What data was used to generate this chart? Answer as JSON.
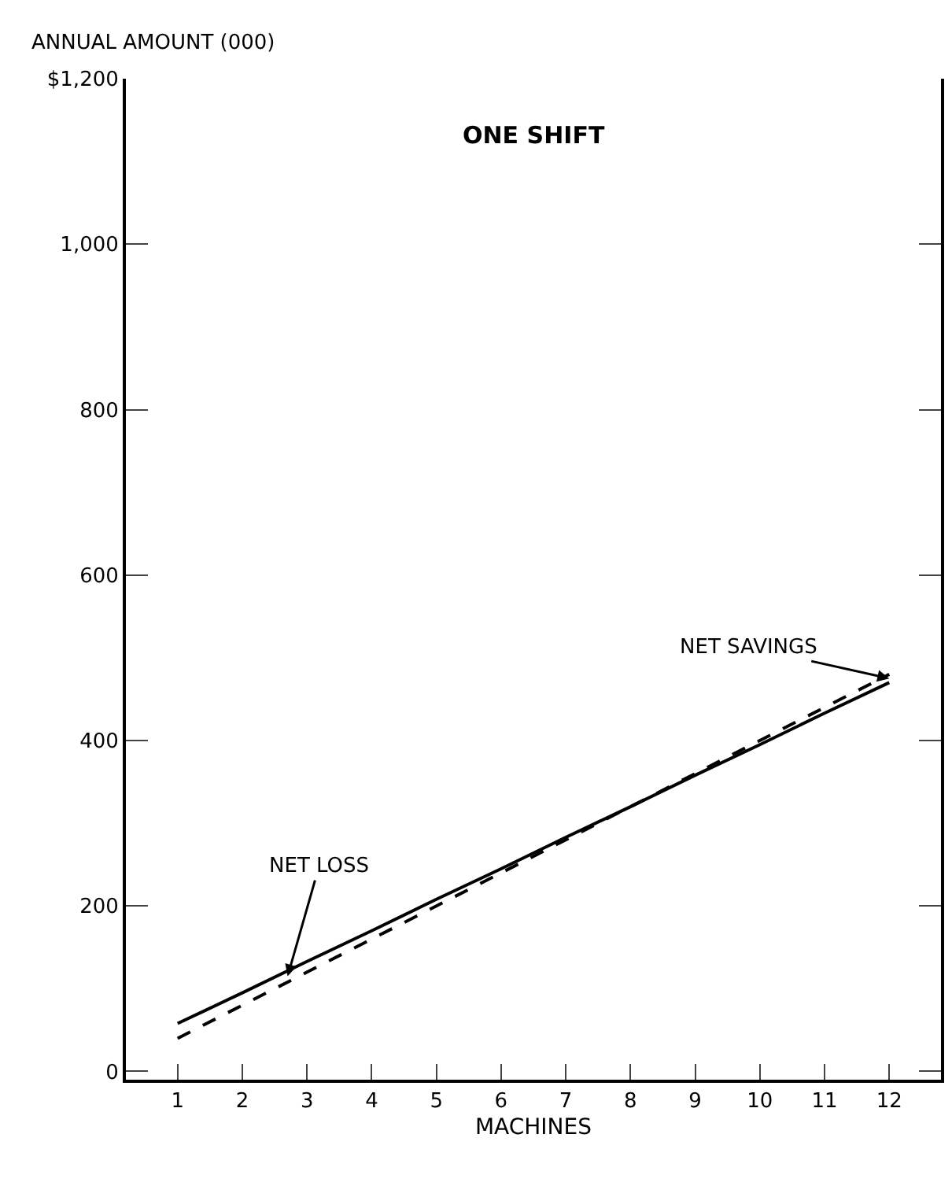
{
  "chart_data": {
    "type": "line",
    "title": "ONE SHIFT",
    "xlabel": "MACHINES",
    "ylabel": "ANNUAL AMOUNT (000)",
    "x": [
      1,
      2,
      3,
      4,
      5,
      6,
      7,
      8,
      9,
      10,
      11,
      12
    ],
    "series": [
      {
        "color": "#000000",
        "line_style": "solid",
        "values": [
          58,
          95,
          133,
          170,
          208,
          245,
          283,
          320,
          358,
          395,
          433,
          470
        ]
      },
      {
        "color": "#000000",
        "line_style": "dashed",
        "values": [
          40,
          80,
          120,
          160,
          200,
          240,
          280,
          320,
          360,
          400,
          440,
          480
        ]
      }
    ],
    "xlim": [
      0.2,
      12.8
    ],
    "xticks": [
      1,
      2,
      3,
      4,
      5,
      6,
      7,
      8,
      9,
      10,
      11,
      12
    ],
    "ylim": [
      -10,
      1200
    ],
    "yticks": [
      0,
      200,
      400,
      600,
      800,
      {
        "value": 1000,
        "label": "1,000"
      },
      {
        "value": 1200,
        "label": "$1,200"
      }
    ],
    "marker": "none",
    "annotations": [
      {
        "text": "NET LOSS",
        "x": 2.7,
        "y": 115
      },
      {
        "text": "NET SAVINGS",
        "x": 12,
        "y": 475
      }
    ]
  }
}
